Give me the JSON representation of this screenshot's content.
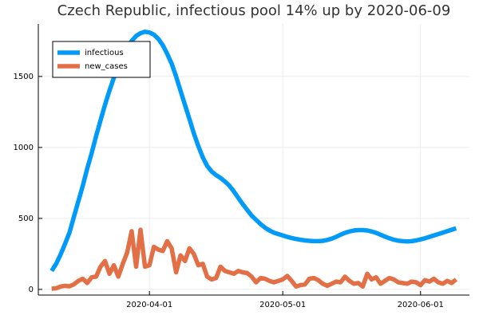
{
  "chart_data": {
    "type": "line",
    "title": "Czech Republic, infectious pool 14% up by 2020-06-09",
    "x": [
      "2020-03-10",
      "2020-03-11",
      "2020-03-12",
      "2020-03-13",
      "2020-03-14",
      "2020-03-15",
      "2020-03-16",
      "2020-03-17",
      "2020-03-18",
      "2020-03-19",
      "2020-03-20",
      "2020-03-21",
      "2020-03-22",
      "2020-03-23",
      "2020-03-24",
      "2020-03-25",
      "2020-03-26",
      "2020-03-27",
      "2020-03-28",
      "2020-03-29",
      "2020-03-30",
      "2020-03-31",
      "2020-04-01",
      "2020-04-02",
      "2020-04-03",
      "2020-04-04",
      "2020-04-05",
      "2020-04-06",
      "2020-04-07",
      "2020-04-08",
      "2020-04-09",
      "2020-04-10",
      "2020-04-11",
      "2020-04-12",
      "2020-04-13",
      "2020-04-14",
      "2020-04-15",
      "2020-04-16",
      "2020-04-17",
      "2020-04-18",
      "2020-04-19",
      "2020-04-20",
      "2020-04-21",
      "2020-04-22",
      "2020-04-23",
      "2020-04-24",
      "2020-04-25",
      "2020-04-26",
      "2020-04-27",
      "2020-04-28",
      "2020-04-29",
      "2020-04-30",
      "2020-05-01",
      "2020-05-02",
      "2020-05-03",
      "2020-05-04",
      "2020-05-05",
      "2020-05-06",
      "2020-05-07",
      "2020-05-08",
      "2020-05-09",
      "2020-05-10",
      "2020-05-11",
      "2020-05-12",
      "2020-05-13",
      "2020-05-14",
      "2020-05-15",
      "2020-05-16",
      "2020-05-17",
      "2020-05-18",
      "2020-05-19",
      "2020-05-20",
      "2020-05-21",
      "2020-05-22",
      "2020-05-23",
      "2020-05-24",
      "2020-05-25",
      "2020-05-26",
      "2020-05-27",
      "2020-05-28",
      "2020-05-29",
      "2020-05-30",
      "2020-05-31",
      "2020-06-01",
      "2020-06-02",
      "2020-06-03",
      "2020-06-04",
      "2020-06-05",
      "2020-06-06",
      "2020-06-07",
      "2020-06-08",
      "2020-06-09"
    ],
    "series": [
      {
        "name": "infectious",
        "color": "#009af9",
        "values": [
          130,
          180,
          245,
          320,
          400,
          510,
          620,
          730,
          850,
          960,
          1080,
          1190,
          1300,
          1400,
          1490,
          1570,
          1640,
          1700,
          1750,
          1785,
          1805,
          1815,
          1810,
          1795,
          1765,
          1720,
          1660,
          1590,
          1500,
          1400,
          1300,
          1200,
          1100,
          1010,
          930,
          870,
          830,
          805,
          785,
          760,
          730,
          690,
          645,
          600,
          560,
          520,
          490,
          460,
          435,
          415,
          400,
          390,
          380,
          370,
          362,
          355,
          350,
          345,
          342,
          340,
          340,
          342,
          348,
          357,
          370,
          385,
          398,
          408,
          415,
          418,
          418,
          415,
          408,
          398,
          385,
          372,
          360,
          350,
          343,
          340,
          338,
          340,
          345,
          352,
          360,
          370,
          380,
          390,
          400,
          410,
          420,
          430
        ]
      },
      {
        "name": "new_cases",
        "color": "#e26f46",
        "values": [
          5,
          8,
          20,
          25,
          22,
          35,
          60,
          75,
          45,
          85,
          90,
          160,
          200,
          110,
          170,
          90,
          180,
          260,
          410,
          160,
          420,
          160,
          170,
          300,
          280,
          270,
          340,
          290,
          120,
          240,
          200,
          290,
          250,
          170,
          180,
          90,
          70,
          80,
          160,
          130,
          120,
          110,
          130,
          120,
          115,
          90,
          50,
          80,
          75,
          60,
          50,
          60,
          70,
          95,
          60,
          20,
          30,
          35,
          75,
          80,
          65,
          40,
          25,
          40,
          55,
          50,
          90,
          60,
          40,
          45,
          20,
          110,
          70,
          85,
          40,
          60,
          80,
          70,
          50,
          45,
          40,
          55,
          50,
          30,
          65,
          55,
          75,
          50,
          40,
          60,
          45,
          70
        ]
      }
    ],
    "xlim": [
      "2020-03-07",
      "2020-06-12"
    ],
    "xticks": [
      "2020-04-01",
      "2020-05-01",
      "2020-06-01"
    ],
    "ylim": [
      -40,
      1870
    ],
    "yticks": [
      0,
      500,
      1000,
      1500
    ],
    "grid": true,
    "legend": "top-left"
  }
}
